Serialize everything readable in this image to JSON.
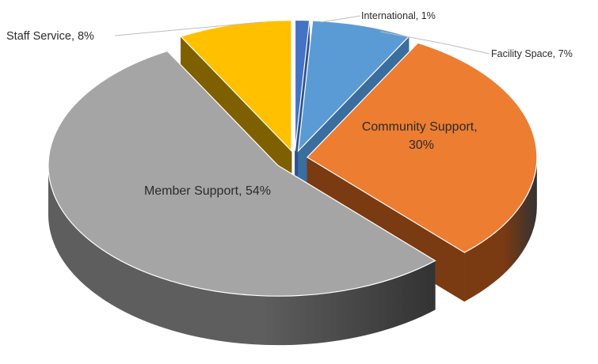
{
  "chart_data": {
    "type": "pie",
    "title": "",
    "legend": "none",
    "series": [
      {
        "name": "",
        "slices": [
          {
            "label": "International",
            "value": 1,
            "color": "#4472C4",
            "side": "#2F528F"
          },
          {
            "label": "Facility Space",
            "value": 7,
            "color": "#5B9BD5",
            "side": "#3A6E9F"
          },
          {
            "label": "Community Support",
            "value": 30,
            "color": "#ED7D31",
            "side": "#7A3A12"
          },
          {
            "label": "Member Support",
            "value": 54,
            "color": "#A5A5A5",
            "side": "#5E5E5E"
          },
          {
            "label": "Staff Service",
            "value": 8,
            "color": "#FFC000",
            "side": "#7F6000"
          }
        ]
      }
    ],
    "data_labels": [
      {
        "text": "International, 1%"
      },
      {
        "text": "Facility Space, 7%"
      },
      {
        "lines": [
          "Community Support,",
          "30%"
        ]
      },
      {
        "text": "Member Support, 54%"
      },
      {
        "text": "Staff Service, 8%"
      }
    ]
  }
}
